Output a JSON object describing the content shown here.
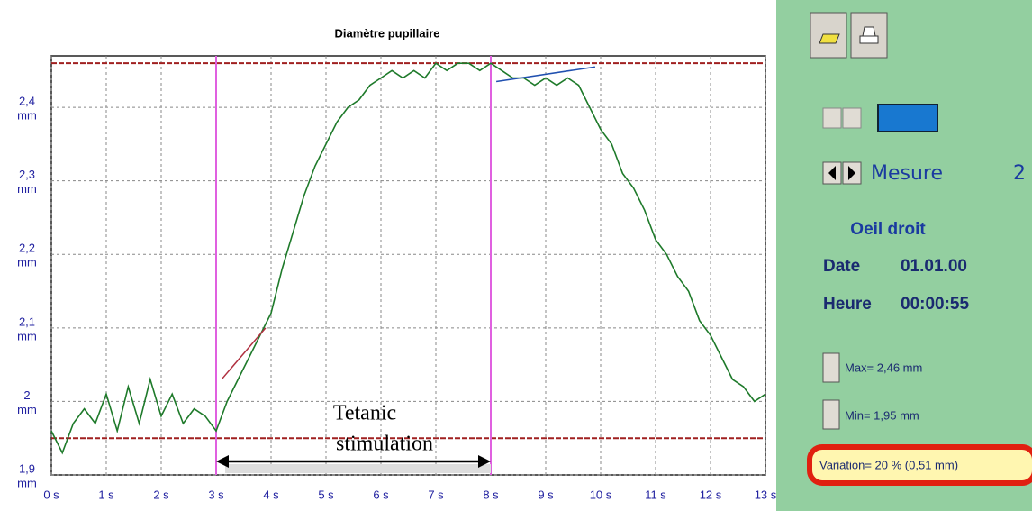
{
  "chart_data": {
    "type": "line",
    "title": "Diamètre pupillaire",
    "x": [
      0,
      0.2,
      0.4,
      0.6,
      0.8,
      1,
      1.2,
      1.4,
      1.6,
      1.8,
      2,
      2.2,
      2.4,
      2.6,
      2.8,
      3,
      3.2,
      3.4,
      3.6,
      3.8,
      4,
      4.2,
      4.4,
      4.6,
      4.8,
      5,
      5.2,
      5.4,
      5.6,
      5.8,
      6,
      6.2,
      6.4,
      6.6,
      6.8,
      7,
      7.2,
      7.4,
      7.6,
      7.8,
      8,
      8.2,
      8.4,
      8.6,
      8.8,
      9,
      9.2,
      9.4,
      9.6,
      9.8,
      10,
      10.2,
      10.4,
      10.6,
      10.8,
      11,
      11.2,
      11.4,
      11.6,
      11.8,
      12,
      12.2,
      12.4,
      12.6,
      12.8,
      13
    ],
    "series": [
      {
        "color": "#1e7a2a",
        "values": [
          1.96,
          1.93,
          1.97,
          1.99,
          1.97,
          2.01,
          1.96,
          2.02,
          1.97,
          2.03,
          1.98,
          2.01,
          1.97,
          1.99,
          1.98,
          1.96,
          2.0,
          2.03,
          2.06,
          2.09,
          2.12,
          2.18,
          2.23,
          2.28,
          2.32,
          2.35,
          2.38,
          2.4,
          2.41,
          2.43,
          2.44,
          2.45,
          2.44,
          2.45,
          2.44,
          2.46,
          2.45,
          2.46,
          2.46,
          2.45,
          2.46,
          2.45,
          2.44,
          2.44,
          2.43,
          2.44,
          2.43,
          2.44,
          2.43,
          2.4,
          2.37,
          2.35,
          2.31,
          2.29,
          2.26,
          2.22,
          2.2,
          2.17,
          2.15,
          2.11,
          2.09,
          2.06,
          2.03,
          2.02,
          2.0,
          2.01
        ]
      }
    ],
    "xlim": [
      0,
      13
    ],
    "xticks": [
      {
        "value": 0,
        "label": "0 s"
      },
      {
        "value": 1,
        "label": "1 s"
      },
      {
        "value": 2,
        "label": "2 s"
      },
      {
        "value": 3,
        "label": "3 s"
      },
      {
        "value": 4,
        "label": "4 s"
      },
      {
        "value": 5,
        "label": "5 s"
      },
      {
        "value": 6,
        "label": "6 s"
      },
      {
        "value": 7,
        "label": "7 s"
      },
      {
        "value": 8,
        "label": "8 s"
      },
      {
        "value": 9,
        "label": "9 s"
      },
      {
        "value": 10,
        "label": "10 s"
      },
      {
        "value": 11,
        "label": "11 s"
      },
      {
        "value": 12,
        "label": "12 s"
      },
      {
        "value": 13,
        "label": "13 s"
      }
    ],
    "ylim": [
      1.9,
      2.47
    ],
    "yticks": [
      {
        "value": 1.9,
        "label": "1,9"
      },
      {
        "value": 2,
        "label": "2"
      },
      {
        "value": 2.1,
        "label": "2,1"
      },
      {
        "value": 2.2,
        "label": "2,2"
      },
      {
        "value": 2.3,
        "label": "2,3"
      },
      {
        "value": 2.4,
        "label": "2,4"
      }
    ],
    "y_unit": "mm",
    "grid": true,
    "hlines": [
      2.46,
      1.95
    ],
    "vlines": [
      3,
      8
    ],
    "fit_lines": [
      {
        "x": [
          3.1,
          3.9
        ],
        "y": [
          2.03,
          2.1
        ],
        "color": "#b03040"
      },
      {
        "x": [
          8.1,
          9.9
        ],
        "y": [
          2.435,
          2.455
        ],
        "color": "#2050b0"
      }
    ],
    "annotation": [
      "Tetanic",
      "stimulation"
    ]
  },
  "panel": {
    "measure_label": "Mesure",
    "measure_number": "2",
    "eye": "Oeil droit",
    "date_label": "Date",
    "date": "01.01.00",
    "time_label": "Heure",
    "time": "00:00:55",
    "max": "Max= 2,46 mm",
    "min": "Min= 1,95 mm",
    "variation": "Variation= 20 % (0,51 mm)"
  }
}
